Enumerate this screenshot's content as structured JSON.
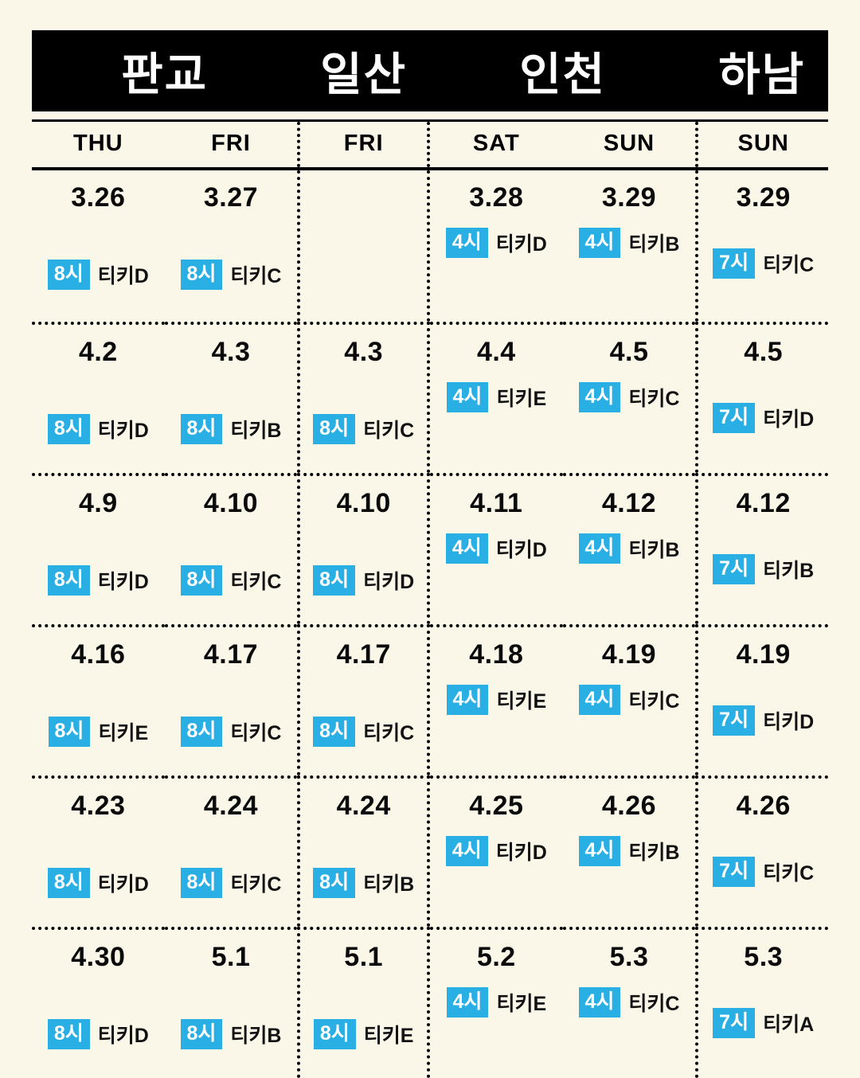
{
  "page": {
    "background": "#FAF7E8",
    "accent_blue": "#2AAFE5",
    "title_bar_bg": "#000000"
  },
  "title_bar": {
    "groups": [
      {
        "label": "판교"
      },
      {
        "label": "일산"
      },
      {
        "label": "인천"
      },
      {
        "label": "하남"
      }
    ]
  },
  "day_header": {
    "days": [
      "THU",
      "FRI",
      "FRI",
      "SAT",
      "SUN",
      "SUN"
    ]
  },
  "rows": [
    {
      "cells": [
        {
          "date": "3.26",
          "time": "8시",
          "ticket": "티키D"
        },
        {
          "date": "3.27",
          "time": "8시",
          "ticket": "티키C"
        },
        {
          "date": "",
          "time": "",
          "ticket": ""
        },
        {
          "date": "3.28",
          "time": "4시",
          "ticket": "티키D"
        },
        {
          "date": "3.29",
          "time": "4시",
          "ticket": "티키B"
        },
        {
          "date": "3.29",
          "time": "7시",
          "ticket": "티키C"
        }
      ]
    },
    {
      "cells": [
        {
          "date": "4.2",
          "time": "8시",
          "ticket": "티키D"
        },
        {
          "date": "4.3",
          "time": "8시",
          "ticket": "티키B"
        },
        {
          "date": "4.3",
          "time": "8시",
          "ticket": "티키C"
        },
        {
          "date": "4.4",
          "time": "4시",
          "ticket": "티키E"
        },
        {
          "date": "4.5",
          "time": "4시",
          "ticket": "티키C"
        },
        {
          "date": "4.5",
          "time": "7시",
          "ticket": "티키D"
        }
      ]
    },
    {
      "cells": [
        {
          "date": "4.9",
          "time": "8시",
          "ticket": "티키D"
        },
        {
          "date": "4.10",
          "time": "8시",
          "ticket": "티키C"
        },
        {
          "date": "4.10",
          "time": "8시",
          "ticket": "티키D"
        },
        {
          "date": "4.11",
          "time": "4시",
          "ticket": "티키D"
        },
        {
          "date": "4.12",
          "time": "4시",
          "ticket": "티키B"
        },
        {
          "date": "4.12",
          "time": "7시",
          "ticket": "티키B"
        }
      ]
    },
    {
      "cells": [
        {
          "date": "4.16",
          "time": "8시",
          "ticket": "티키E"
        },
        {
          "date": "4.17",
          "time": "8시",
          "ticket": "티키C"
        },
        {
          "date": "4.17",
          "time": "8시",
          "ticket": "티키C"
        },
        {
          "date": "4.18",
          "time": "4시",
          "ticket": "티키E"
        },
        {
          "date": "4.19",
          "time": "4시",
          "ticket": "티키C"
        },
        {
          "date": "4.19",
          "time": "7시",
          "ticket": "티키D"
        }
      ]
    },
    {
      "cells": [
        {
          "date": "4.23",
          "time": "8시",
          "ticket": "티키D"
        },
        {
          "date": "4.24",
          "time": "8시",
          "ticket": "티키C"
        },
        {
          "date": "4.24",
          "time": "8시",
          "ticket": "티키B"
        },
        {
          "date": "4.25",
          "time": "4시",
          "ticket": "티키D"
        },
        {
          "date": "4.26",
          "time": "4시",
          "ticket": "티키B"
        },
        {
          "date": "4.26",
          "time": "7시",
          "ticket": "티키C"
        }
      ]
    },
    {
      "cells": [
        {
          "date": "4.30",
          "time": "8시",
          "ticket": "티키D"
        },
        {
          "date": "5.1",
          "time": "8시",
          "ticket": "티키B"
        },
        {
          "date": "5.1",
          "time": "8시",
          "ticket": "티키E"
        },
        {
          "date": "5.2",
          "time": "4시",
          "ticket": "티키E"
        },
        {
          "date": "5.3",
          "time": "4시",
          "ticket": "티키C"
        },
        {
          "date": "5.3",
          "time": "7시",
          "ticket": "티키A"
        }
      ]
    }
  ]
}
